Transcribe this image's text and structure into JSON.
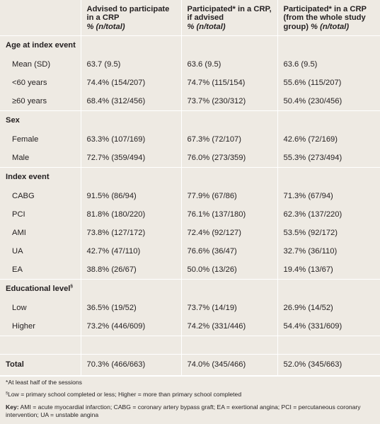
{
  "header": {
    "col1": "Advised to participate in a CRP",
    "col1_unit": "% (n/total)",
    "col2": "Participated* in a CRP, if advised",
    "col2_unit": "% (n/total)",
    "col3": "Participated* in a CRP (from the whole study group)",
    "col3_unit": "% (n/total)"
  },
  "sections": [
    {
      "title": "Age at index event",
      "rows": [
        {
          "label": "Mean (SD)",
          "v1": "63.7 (9.5)",
          "v2": "63.6 (9.5)",
          "v3": "63.6 (9.5)"
        },
        {
          "label": "<60 years",
          "v1": "74.4% (154/207)",
          "v2": "74.7% (115/154)",
          "v3": "55.6% (115/207)"
        },
        {
          "label": "≥60 years",
          "v1": "68.4% (312/456)",
          "v2": "73.7% (230/312)",
          "v3": "50.4% (230/456)"
        }
      ]
    },
    {
      "title": "Sex",
      "rows": [
        {
          "label": "Female",
          "v1": "63.3% (107/169)",
          "v2": "67.3% (72/107)",
          "v3": "42.6% (72/169)"
        },
        {
          "label": "Male",
          "v1": "72.7% (359/494)",
          "v2": "76.0% (273/359)",
          "v3": "55.3% (273/494)"
        }
      ]
    },
    {
      "title": "Index event",
      "rows": [
        {
          "label": "CABG",
          "v1": "91.5% (86/94)",
          "v2": "77.9% (67/86)",
          "v3": "71.3% (67/94)"
        },
        {
          "label": "PCI",
          "v1": "81.8% (180/220)",
          "v2": "76.1% (137/180)",
          "v3": "62.3% (137/220)"
        },
        {
          "label": "AMI",
          "v1": "73.8% (127/172)",
          "v2": "72.4% (92/127)",
          "v3": "53.5% (92/172)"
        },
        {
          "label": "UA",
          "v1": "42.7% (47/110)",
          "v2": "76.6% (36/47)",
          "v3": "32.7% (36/110)"
        },
        {
          "label": "EA",
          "v1": "38.8% (26/67)",
          "v2": "50.0% (13/26)",
          "v3": "19.4% (13/67)"
        }
      ]
    },
    {
      "title": "Educational level",
      "title_sup": "§",
      "rows": [
        {
          "label": "Low",
          "v1": "36.5% (19/52)",
          "v2": "73.7% (14/19)",
          "v3": "26.9% (14/52)"
        },
        {
          "label": "Higher",
          "v1": "73.2% (446/609)",
          "v2": "74.2% (331/446)",
          "v3": "54.4% (331/609)"
        }
      ]
    }
  ],
  "total": {
    "label": "Total",
    "v1": "70.3% (466/663)",
    "v2": "74.0% (345/466)",
    "v3": "52.0% (345/663)"
  },
  "footnotes": {
    "note1": "*At least half of the sessions",
    "note2_sup": "§",
    "note2": "Low = primary school completed or less; Higher = more than primary school completed",
    "key_label": "Key:",
    "key_text": " AMI = acute myocardial infarction; CABG = coronary artery bypass graft; EA = exertional angina; PCI = percutaneous coronary intervention; UA = unstable angina"
  }
}
